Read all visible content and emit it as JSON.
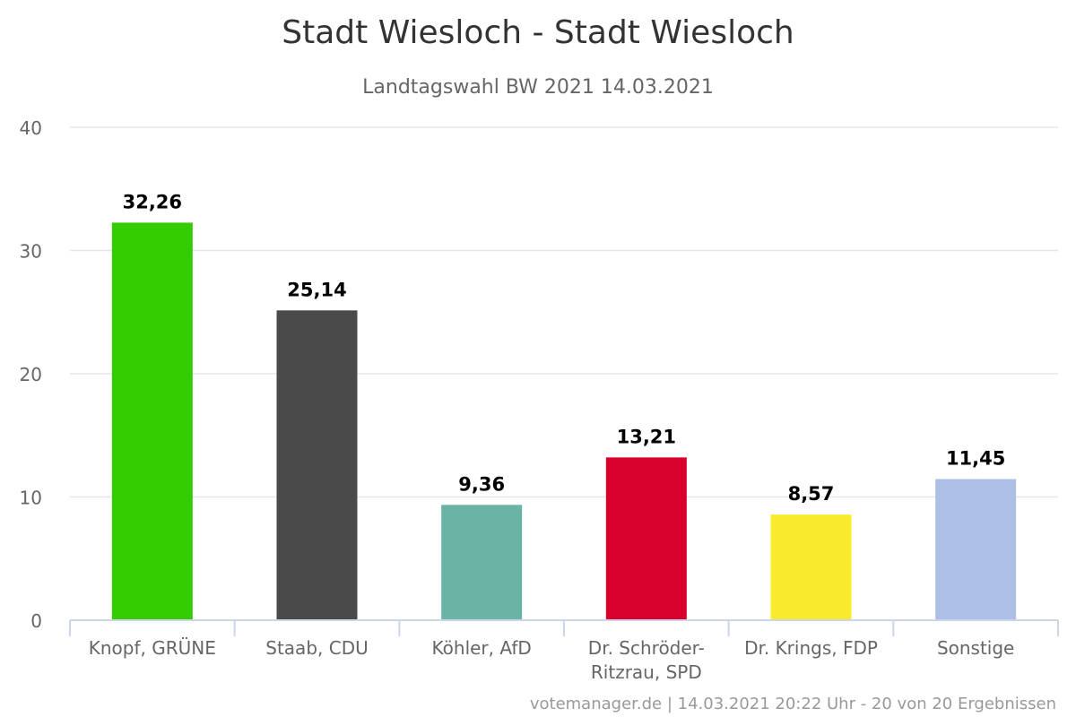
{
  "chart_data": {
    "type": "bar",
    "title": "Stadt Wiesloch - Stadt Wiesloch",
    "subtitle": "Landtagswahl BW 2021 14.03.2021",
    "categories": [
      [
        "Knopf, GRÜNE"
      ],
      [
        "Staab, CDU"
      ],
      [
        "Köhler, AfD"
      ],
      [
        "Dr. Schröder-",
        "Ritzrau, SPD"
      ],
      [
        "Dr. Krings, FDP"
      ],
      [
        "Sonstige"
      ]
    ],
    "values": [
      32.26,
      25.14,
      9.36,
      13.21,
      8.57,
      11.45
    ],
    "value_labels": [
      "32,26",
      "25,14",
      "9,36",
      "13,21",
      "8,57",
      "11,45"
    ],
    "colors": [
      "#33cc00",
      "#4a4a4a",
      "#6bb3a4",
      "#d8002d",
      "#f9ea2b",
      "#adbfe5"
    ],
    "ylim": [
      0,
      40
    ],
    "yticks": [
      0,
      10,
      20,
      30,
      40
    ],
    "grid": true,
    "legend": "none",
    "credits": "votemanager.de | 14.03.2021 20:22 Uhr - 20 von 20 Ergebnissen"
  }
}
